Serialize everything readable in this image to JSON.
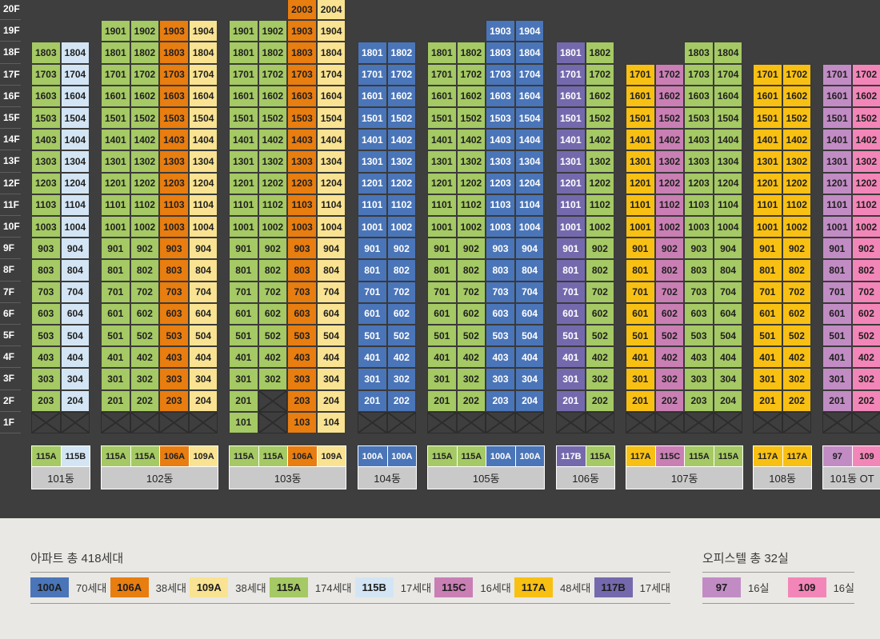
{
  "palette": {
    "board_bg": "#3e3e3e",
    "panel_bg": "#e9e8e4",
    "floor_line": "#5e5e5e",
    "floor_text": "#ffffff",
    "blocked_line": "#2d2d2d",
    "building_label_bg": "#c9c9c9",
    "building_label_text": "#222222",
    "legend_rule": "#9a9a9a",
    "legend_text": "#3a3a3a",
    "types": {
      "100A": {
        "bg": "#4a75b8",
        "text": "#ffffff"
      },
      "106A": {
        "bg": "#e87d10",
        "text": "#1f1f1f"
      },
      "109A": {
        "bg": "#f9e392",
        "text": "#1f1f1f"
      },
      "115A": {
        "bg": "#a5c964",
        "text": "#1f1f1f"
      },
      "115B": {
        "bg": "#d3e5f4",
        "text": "#1f1f1f"
      },
      "115C": {
        "bg": "#c97fb4",
        "text": "#1f1f1f"
      },
      "117A": {
        "bg": "#f8c013",
        "text": "#1f1f1f"
      },
      "117B": {
        "bg": "#7569ad",
        "text": "#ffffff"
      },
      "97": {
        "bg": "#c18cc4",
        "text": "#1f1f1f"
      },
      "109": {
        "bg": "#f386b8",
        "text": "#1f1f1f"
      }
    }
  },
  "floors": [
    "20F",
    "19F",
    "18F",
    "17F",
    "16F",
    "15F",
    "14F",
    "13F",
    "12F",
    "11F",
    "10F",
    "9F",
    "8F",
    "7F",
    "6F",
    "5F",
    "4F",
    "3F",
    "2F",
    "1F"
  ],
  "buildings": [
    {
      "name": "101동",
      "columns": [
        {
          "type": "115A",
          "units": [
            "1803",
            "1703",
            "1603",
            "1503",
            "1403",
            "1303",
            "1203",
            "1103",
            "1003",
            "903",
            "803",
            "703",
            "603",
            "503",
            "403",
            "303",
            "203"
          ],
          "blocked_floors": [
            1
          ]
        },
        {
          "type": "115B",
          "units": [
            "1804",
            "1704",
            "1604",
            "1504",
            "1404",
            "1304",
            "1204",
            "1104",
            "1004",
            "904",
            "804",
            "704",
            "604",
            "504",
            "404",
            "304",
            "204"
          ],
          "blocked_floors": [
            1
          ]
        }
      ]
    },
    {
      "name": "102동",
      "columns": [
        {
          "type": "115A",
          "units": [
            "1901",
            "1801",
            "1701",
            "1601",
            "1501",
            "1401",
            "1301",
            "1201",
            "1101",
            "1001",
            "901",
            "801",
            "701",
            "601",
            "501",
            "401",
            "301",
            "201"
          ],
          "blocked_floors": [
            1
          ]
        },
        {
          "type": "115A",
          "units": [
            "1902",
            "1802",
            "1702",
            "1602",
            "1502",
            "1402",
            "1302",
            "1202",
            "1102",
            "1002",
            "902",
            "802",
            "702",
            "602",
            "502",
            "402",
            "302",
            "202"
          ],
          "blocked_floors": [
            1
          ]
        },
        {
          "type": "106A",
          "units": [
            "1903",
            "1803",
            "1703",
            "1603",
            "1503",
            "1403",
            "1303",
            "1203",
            "1103",
            "1003",
            "903",
            "803",
            "703",
            "603",
            "503",
            "403",
            "303",
            "203"
          ],
          "blocked_floors": [
            1
          ]
        },
        {
          "type": "109A",
          "units": [
            "1904",
            "1804",
            "1704",
            "1604",
            "1504",
            "1404",
            "1304",
            "1204",
            "1104",
            "1004",
            "904",
            "804",
            "704",
            "604",
            "504",
            "404",
            "304",
            "204"
          ],
          "blocked_floors": [
            1
          ]
        }
      ]
    },
    {
      "name": "103동",
      "columns": [
        {
          "type": "115A",
          "units": [
            "1901",
            "1801",
            "1701",
            "1601",
            "1501",
            "1401",
            "1301",
            "1201",
            "1101",
            "1001",
            "901",
            "801",
            "701",
            "601",
            "501",
            "401",
            "301",
            "201",
            "101"
          ],
          "blocked_floors": []
        },
        {
          "type": "115A",
          "units": [
            "1902",
            "1802",
            "1702",
            "1602",
            "1502",
            "1402",
            "1302",
            "1202",
            "1102",
            "1002",
            "902",
            "802",
            "702",
            "602",
            "502",
            "402",
            "302"
          ],
          "blocked_floors": [
            2,
            1
          ]
        },
        {
          "type": "106A",
          "units": [
            "2003",
            "1903",
            "1803",
            "1703",
            "1603",
            "1503",
            "1403",
            "1303",
            "1203",
            "1103",
            "1003",
            "903",
            "803",
            "703",
            "603",
            "503",
            "403",
            "303",
            "203",
            "103"
          ],
          "blocked_floors": []
        },
        {
          "type": "109A",
          "units": [
            "2004",
            "1904",
            "1804",
            "1704",
            "1604",
            "1504",
            "1404",
            "1304",
            "1204",
            "1104",
            "1004",
            "904",
            "804",
            "704",
            "604",
            "504",
            "404",
            "304",
            "204",
            "104"
          ],
          "blocked_floors": []
        }
      ]
    },
    {
      "name": "104동",
      "columns": [
        {
          "type": "100A",
          "units": [
            "1801",
            "1701",
            "1601",
            "1501",
            "1401",
            "1301",
            "1201",
            "1101",
            "1001",
            "901",
            "801",
            "701",
            "601",
            "501",
            "401",
            "301",
            "201"
          ],
          "blocked_floors": [
            1
          ]
        },
        {
          "type": "100A",
          "units": [
            "1802",
            "1702",
            "1602",
            "1502",
            "1402",
            "1302",
            "1202",
            "1102",
            "1002",
            "902",
            "802",
            "702",
            "602",
            "502",
            "402",
            "302",
            "202"
          ],
          "blocked_floors": [
            1
          ]
        }
      ]
    },
    {
      "name": "105동",
      "columns": [
        {
          "type": "115A",
          "units": [
            "1801",
            "1701",
            "1601",
            "1501",
            "1401",
            "1301",
            "1201",
            "1101",
            "1001",
            "901",
            "801",
            "701",
            "601",
            "501",
            "401",
            "301",
            "201"
          ],
          "blocked_floors": [
            1
          ]
        },
        {
          "type": "115A",
          "units": [
            "1802",
            "1702",
            "1602",
            "1502",
            "1402",
            "1302",
            "1202",
            "1102",
            "1002",
            "902",
            "802",
            "702",
            "602",
            "502",
            "402",
            "302",
            "202"
          ],
          "blocked_floors": [
            1
          ]
        },
        {
          "type": "100A",
          "units": [
            "1903",
            "1803",
            "1703",
            "1603",
            "1503",
            "1403",
            "1303",
            "1203",
            "1103",
            "1003",
            "903",
            "803",
            "703",
            "603",
            "503",
            "403",
            "303",
            "203"
          ],
          "blocked_floors": [
            1
          ]
        },
        {
          "type": "100A",
          "units": [
            "1904",
            "1804",
            "1704",
            "1604",
            "1504",
            "1404",
            "1304",
            "1204",
            "1104",
            "1004",
            "904",
            "804",
            "704",
            "604",
            "504",
            "404",
            "304",
            "204"
          ],
          "blocked_floors": [
            1
          ]
        }
      ]
    },
    {
      "name": "106동",
      "columns": [
        {
          "type": "117B",
          "units": [
            "1801",
            "1701",
            "1601",
            "1501",
            "1401",
            "1301",
            "1201",
            "1101",
            "1001",
            "901",
            "801",
            "701",
            "601",
            "501",
            "401",
            "301",
            "201"
          ],
          "blocked_floors": [
            1
          ]
        },
        {
          "type": "115A",
          "units": [
            "1802",
            "1702",
            "1602",
            "1502",
            "1402",
            "1302",
            "1202",
            "1102",
            "1002",
            "902",
            "802",
            "702",
            "602",
            "502",
            "402",
            "302",
            "202"
          ],
          "blocked_floors": [
            1
          ]
        }
      ]
    },
    {
      "name": "107동",
      "columns": [
        {
          "type": "117A",
          "units": [
            "1701",
            "1601",
            "1501",
            "1401",
            "1301",
            "1201",
            "1101",
            "1001",
            "901",
            "801",
            "701",
            "601",
            "501",
            "401",
            "301",
            "201"
          ],
          "blocked_floors": [
            1
          ]
        },
        {
          "type": "115C",
          "units": [
            "1702",
            "1602",
            "1502",
            "1402",
            "1302",
            "1202",
            "1102",
            "1002",
            "902",
            "802",
            "702",
            "602",
            "502",
            "402",
            "302",
            "202"
          ],
          "blocked_floors": [
            1
          ]
        },
        {
          "type": "115A",
          "units": [
            "1803",
            "1703",
            "1603",
            "1503",
            "1403",
            "1303",
            "1203",
            "1103",
            "1003",
            "903",
            "803",
            "703",
            "603",
            "503",
            "403",
            "303",
            "203"
          ],
          "blocked_floors": [
            1
          ]
        },
        {
          "type": "115A",
          "units": [
            "1804",
            "1704",
            "1604",
            "1504",
            "1404",
            "1304",
            "1204",
            "1104",
            "1004",
            "904",
            "804",
            "704",
            "604",
            "504",
            "404",
            "304",
            "204"
          ],
          "blocked_floors": [
            1
          ]
        }
      ]
    },
    {
      "name": "108동",
      "columns": [
        {
          "type": "117A",
          "units": [
            "1701",
            "1601",
            "1501",
            "1401",
            "1301",
            "1201",
            "1101",
            "1001",
            "901",
            "801",
            "701",
            "601",
            "501",
            "401",
            "301",
            "201"
          ],
          "blocked_floors": [
            1
          ]
        },
        {
          "type": "117A",
          "units": [
            "1702",
            "1602",
            "1502",
            "1402",
            "1302",
            "1202",
            "1102",
            "1002",
            "902",
            "802",
            "702",
            "602",
            "502",
            "402",
            "302",
            "202"
          ],
          "blocked_floors": [
            1
          ]
        }
      ]
    },
    {
      "name": "101동 OT",
      "columns": [
        {
          "type": "97",
          "units": [
            "1701",
            "1601",
            "1501",
            "1401",
            "1301",
            "1201",
            "1101",
            "1001",
            "901",
            "801",
            "701",
            "601",
            "501",
            "401",
            "301",
            "201"
          ],
          "blocked_floors": [
            1
          ]
        },
        {
          "type": "109",
          "units": [
            "1702",
            "1602",
            "1502",
            "1402",
            "1302",
            "1202",
            "1102",
            "1002",
            "902",
            "802",
            "702",
            "602",
            "502",
            "402",
            "302",
            "202"
          ],
          "blocked_floors": [
            1
          ]
        }
      ]
    }
  ],
  "legend_apartment": {
    "title": "아파트 총 418세대",
    "items": [
      {
        "type": "100A",
        "count": "70세대"
      },
      {
        "type": "106A",
        "count": "38세대"
      },
      {
        "type": "109A",
        "count": "38세대"
      },
      {
        "type": "115A",
        "count": "174세대"
      },
      {
        "type": "115B",
        "count": "17세대"
      },
      {
        "type": "115C",
        "count": "16세대"
      },
      {
        "type": "117A",
        "count": "48세대"
      },
      {
        "type": "117B",
        "count": "17세대"
      }
    ]
  },
  "legend_officetel": {
    "title": "오피스텔 총 32실",
    "items": [
      {
        "type": "97",
        "count": "16실"
      },
      {
        "type": "109",
        "count": "16실"
      }
    ]
  }
}
